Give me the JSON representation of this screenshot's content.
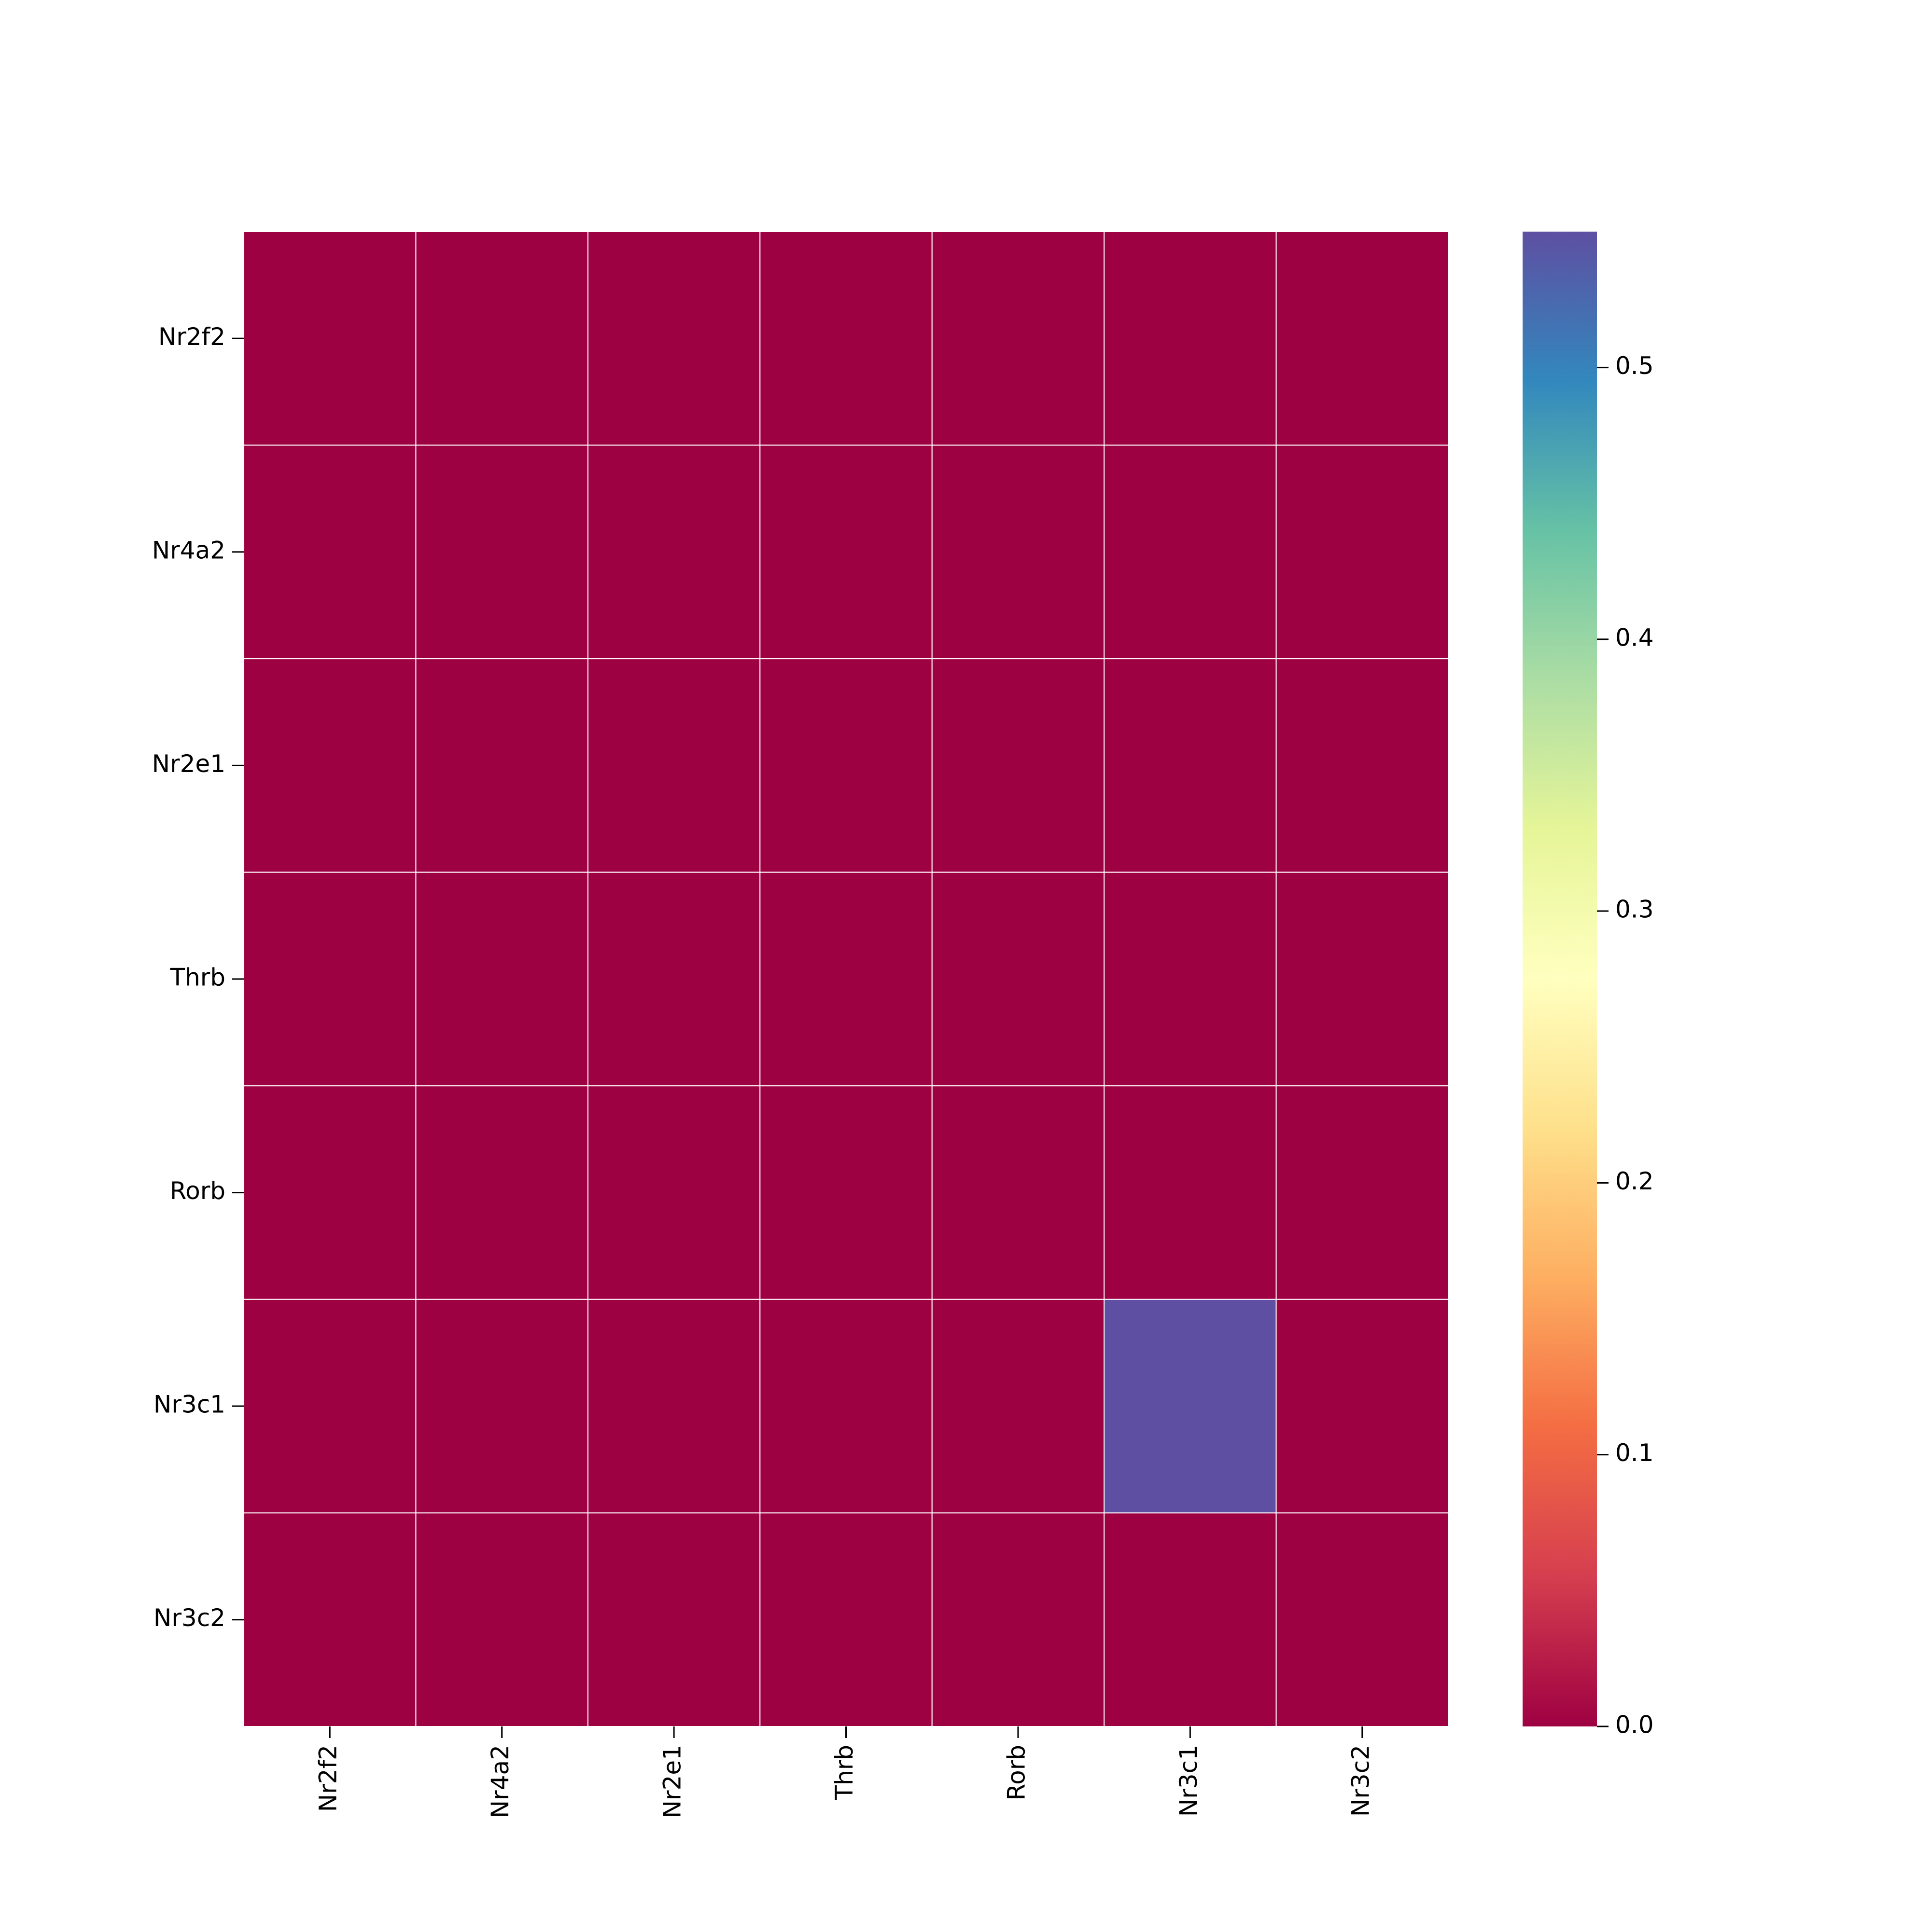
{
  "chart_data": {
    "type": "heatmap",
    "title": "",
    "xlabel": "",
    "ylabel": "",
    "x_categories": [
      "Nr2f2",
      "Nr4a2",
      "Nr2e1",
      "Thrb",
      "Rorb",
      "Nr3c1",
      "Nr3c2"
    ],
    "y_categories": [
      "Nr2f2",
      "Nr4a2",
      "Nr2e1",
      "Thrb",
      "Rorb",
      "Nr3c1",
      "Nr3c2"
    ],
    "values": [
      [
        0,
        0,
        0,
        0,
        0,
        0,
        0
      ],
      [
        0,
        0,
        0,
        0,
        0,
        0,
        0
      ],
      [
        0,
        0,
        0,
        0,
        0,
        0,
        0
      ],
      [
        0,
        0,
        0,
        0,
        0,
        0,
        0
      ],
      [
        0,
        0,
        0,
        0,
        0,
        0,
        0
      ],
      [
        0,
        0,
        0,
        0,
        0,
        0.55,
        0
      ],
      [
        0,
        0,
        0,
        0,
        0,
        0,
        0
      ]
    ],
    "colormap": "Spectral",
    "colorbar": {
      "range": [
        0,
        0.55
      ],
      "ticks": [
        0.0,
        0.1,
        0.2,
        0.3,
        0.4,
        0.5
      ],
      "tick_labels": [
        "0.0",
        "0.1",
        "0.2",
        "0.3",
        "0.4",
        "0.5"
      ],
      "placement": "right"
    },
    "cell_border_color": "#ffffff"
  }
}
